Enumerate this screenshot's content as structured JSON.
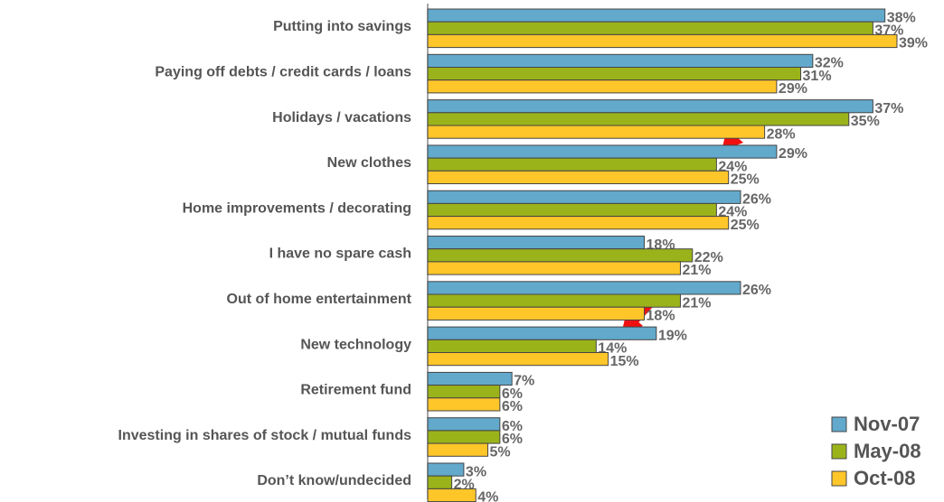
{
  "chart_data": {
    "type": "bar",
    "orientation": "horizontal",
    "categories": [
      "Putting into savings",
      "Paying off debts / credit cards / loans",
      "Holidays / vacations",
      "New clothes",
      "Home improvements / decorating",
      "I have no spare cash",
      "Out of home entertainment",
      "New technology",
      "Retirement fund",
      "Investing in shares of stock / mutual funds",
      "Don’t know/undecided"
    ],
    "series": [
      {
        "name": "Nov-07",
        "color": "#62a9cc",
        "values": [
          38,
          32,
          37,
          29,
          26,
          18,
          26,
          19,
          7,
          6,
          3
        ],
        "value_labels": [
          "38%",
          "32%",
          "37%",
          "29%",
          "26%",
          "18%",
          "26%",
          "19%",
          "7%",
          "6%",
          "3%"
        ]
      },
      {
        "name": "May-08",
        "color": "#9bb31a",
        "values": [
          37,
          31,
          35,
          24,
          24,
          22,
          21,
          14,
          6,
          6,
          2
        ],
        "value_labels": [
          "37%",
          "31%",
          "35%",
          "24%",
          "24%",
          "22%",
          "21%",
          "14%",
          "6%",
          "6%",
          "2%"
        ]
      },
      {
        "name": "Oct-08",
        "color": "#ffc62a",
        "values": [
          39,
          29,
          28,
          25,
          25,
          21,
          18,
          15,
          6,
          5,
          4
        ],
        "value_labels": [
          "39%",
          "29%",
          "28%",
          "25%",
          "25%",
          "21%",
          "18%",
          "15%",
          "6%",
          "5%",
          "4%"
        ]
      }
    ],
    "legend": "lower right"
  }
}
